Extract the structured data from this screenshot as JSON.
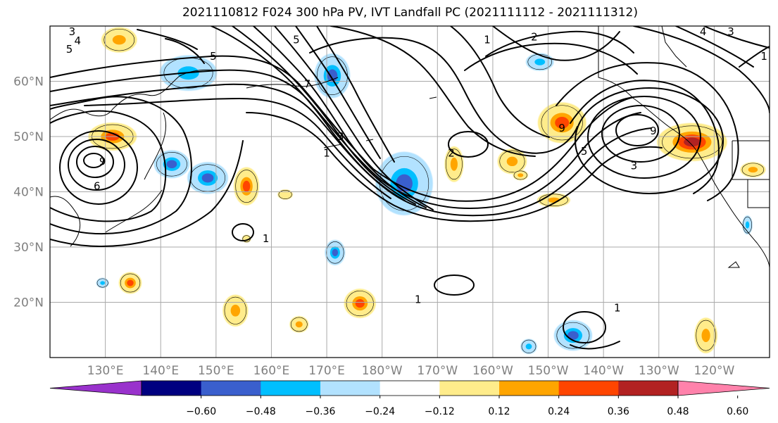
{
  "title": "2021110812 F024 300 hPa PV, IVT Landfall PC (2021111112 - 2021111312)",
  "map": {
    "lon_min": 120,
    "lon_max": 250,
    "lat_min": 10,
    "lat_max": 70,
    "gridlines": true,
    "lon_ticks": [
      {
        "lon": 130,
        "label": "130°E"
      },
      {
        "lon": 140,
        "label": "140°E"
      },
      {
        "lon": 150,
        "label": "150°E"
      },
      {
        "lon": 160,
        "label": "160°E"
      },
      {
        "lon": 170,
        "label": "170°E"
      },
      {
        "lon": 180,
        "label": "180°W"
      },
      {
        "lon": 190,
        "label": "170°W"
      },
      {
        "lon": 200,
        "label": "160°W"
      },
      {
        "lon": 210,
        "label": "150°W"
      },
      {
        "lon": 220,
        "label": "140°W"
      },
      {
        "lon": 230,
        "label": "130°W"
      },
      {
        "lon": 240,
        "label": "120°W"
      }
    ],
    "lat_ticks": [
      {
        "lat": 20,
        "label": "20°N"
      },
      {
        "lat": 30,
        "label": "30°N"
      },
      {
        "lat": 40,
        "label": "40°N"
      },
      {
        "lat": 50,
        "label": "50°N"
      },
      {
        "lat": 60,
        "label": "60°N"
      }
    ]
  },
  "colorbar": {
    "extend": "both",
    "colors": [
      "#9932cc",
      "#000080",
      "#3a5fcd",
      "#00bfff",
      "#b2e2ff",
      "#ffffff",
      "#ffec8b",
      "#ffa500",
      "#ff4500",
      "#b22222",
      "#ff82ab"
    ],
    "ticks": [
      "−0.60",
      "−0.48",
      "−0.36",
      "−0.24",
      "−0.12",
      "0.12",
      "0.24",
      "0.36",
      "0.48",
      "0.60"
    ]
  },
  "shaded_features": [
    {
      "lon": 131.3,
      "lat": 50.0,
      "rx": 3.8,
      "ry": 2.2,
      "value": 0.4
    },
    {
      "lon": 132.5,
      "lat": 67.5,
      "rx": 2.8,
      "ry": 2.0,
      "value": 0.32
    },
    {
      "lon": 145.0,
      "lat": 61.5,
      "rx": 4.5,
      "ry": 2.8,
      "value": -0.28
    },
    {
      "lon": 142.0,
      "lat": 45.0,
      "rx": 2.8,
      "ry": 2.2,
      "value": -0.4
    },
    {
      "lon": 148.5,
      "lat": 42.5,
      "rx": 3.2,
      "ry": 2.5,
      "value": -0.4
    },
    {
      "lon": 155.5,
      "lat": 41.0,
      "rx": 2.0,
      "ry": 3.0,
      "value": 0.38
    },
    {
      "lon": 162.5,
      "lat": 39.5,
      "rx": 1.2,
      "ry": 0.8,
      "value": 0.2
    },
    {
      "lon": 171.0,
      "lat": 61.0,
      "rx": 2.8,
      "ry": 3.5,
      "value": -0.36
    },
    {
      "lon": 184.0,
      "lat": 41.5,
      "rx": 4.5,
      "ry": 5.0,
      "value": -0.44
    },
    {
      "lon": 193.0,
      "lat": 45.0,
      "rx": 1.5,
      "ry": 2.8,
      "value": 0.32
    },
    {
      "lon": 208.5,
      "lat": 63.5,
      "rx": 2.2,
      "ry": 1.4,
      "value": -0.28
    },
    {
      "lon": 203.5,
      "lat": 45.5,
      "rx": 2.3,
      "ry": 2.0,
      "value": 0.3
    },
    {
      "lon": 212.5,
      "lat": 52.5,
      "rx": 3.8,
      "ry": 3.2,
      "value": 0.36
    },
    {
      "lon": 236.0,
      "lat": 49.0,
      "rx": 5.5,
      "ry": 3.0,
      "value": 0.48
    },
    {
      "lon": 247.0,
      "lat": 44.0,
      "rx": 2.0,
      "ry": 1.2,
      "value": 0.3
    },
    {
      "lon": 211.0,
      "lat": 38.5,
      "rx": 2.6,
      "ry": 1.1,
      "value": 0.28
    },
    {
      "lon": 205.0,
      "lat": 43.0,
      "rx": 1.2,
      "ry": 0.8,
      "value": 0.26
    },
    {
      "lon": 171.5,
      "lat": 29.0,
      "rx": 1.6,
      "ry": 2.0,
      "value": -0.4
    },
    {
      "lon": 134.5,
      "lat": 23.5,
      "rx": 1.8,
      "ry": 1.7,
      "value": 0.38
    },
    {
      "lon": 129.5,
      "lat": 23.5,
      "rx": 1.0,
      "ry": 0.8,
      "value": -0.3
    },
    {
      "lon": 176.0,
      "lat": 19.8,
      "rx": 2.5,
      "ry": 2.3,
      "value": 0.38
    },
    {
      "lon": 153.5,
      "lat": 18.5,
      "rx": 2.0,
      "ry": 2.5,
      "value": 0.3
    },
    {
      "lon": 165.0,
      "lat": 16.0,
      "rx": 1.5,
      "ry": 1.3,
      "value": 0.3
    },
    {
      "lon": 214.5,
      "lat": 14.0,
      "rx": 3.0,
      "ry": 2.4,
      "value": -0.4
    },
    {
      "lon": 206.5,
      "lat": 12.0,
      "rx": 1.3,
      "ry": 1.2,
      "value": -0.28
    },
    {
      "lon": 238.5,
      "lat": 14.0,
      "rx": 1.8,
      "ry": 2.8,
      "value": 0.3
    },
    {
      "lon": 155.5,
      "lat": 31.5,
      "rx": 0.7,
      "ry": 0.6,
      "value": 0.2
    },
    {
      "lon": 246.0,
      "lat": 34.0,
      "rx": 0.8,
      "ry": 1.5,
      "value": -0.26
    }
  ],
  "contour_labels": [
    {
      "lon": 124.0,
      "lat": 69.0,
      "text": "3"
    },
    {
      "lon": 125.0,
      "lat": 67.3,
      "text": "4"
    },
    {
      "lon": 123.5,
      "lat": 65.8,
      "text": "5"
    },
    {
      "lon": 149.5,
      "lat": 64.5,
      "text": "5"
    },
    {
      "lon": 164.5,
      "lat": 67.5,
      "text": "5"
    },
    {
      "lon": 166.5,
      "lat": 59.5,
      "text": "7"
    },
    {
      "lon": 172.5,
      "lat": 50.0,
      "text": "3"
    },
    {
      "lon": 170.0,
      "lat": 47.0,
      "text": "1"
    },
    {
      "lon": 192.5,
      "lat": 47.0,
      "text": "2"
    },
    {
      "lon": 199.0,
      "lat": 67.5,
      "text": "1"
    },
    {
      "lon": 207.5,
      "lat": 68.0,
      "text": "2"
    },
    {
      "lon": 212.5,
      "lat": 51.5,
      "text": "9"
    },
    {
      "lon": 216.5,
      "lat": 47.3,
      "text": "5"
    },
    {
      "lon": 225.5,
      "lat": 44.7,
      "text": "3"
    },
    {
      "lon": 229.0,
      "lat": 51.0,
      "text": "9"
    },
    {
      "lon": 238.0,
      "lat": 69.0,
      "text": "4"
    },
    {
      "lon": 243.0,
      "lat": 69.0,
      "text": "3"
    },
    {
      "lon": 222.5,
      "lat": 19.0,
      "text": "1"
    },
    {
      "lon": 186.5,
      "lat": 20.5,
      "text": "1"
    },
    {
      "lon": 159.0,
      "lat": 31.5,
      "text": "1"
    },
    {
      "lon": 129.5,
      "lat": 45.5,
      "text": "9"
    },
    {
      "lon": 128.5,
      "lat": 41.0,
      "text": "6"
    },
    {
      "lon": 249.0,
      "lat": 64.5,
      "text": "1"
    }
  ]
}
